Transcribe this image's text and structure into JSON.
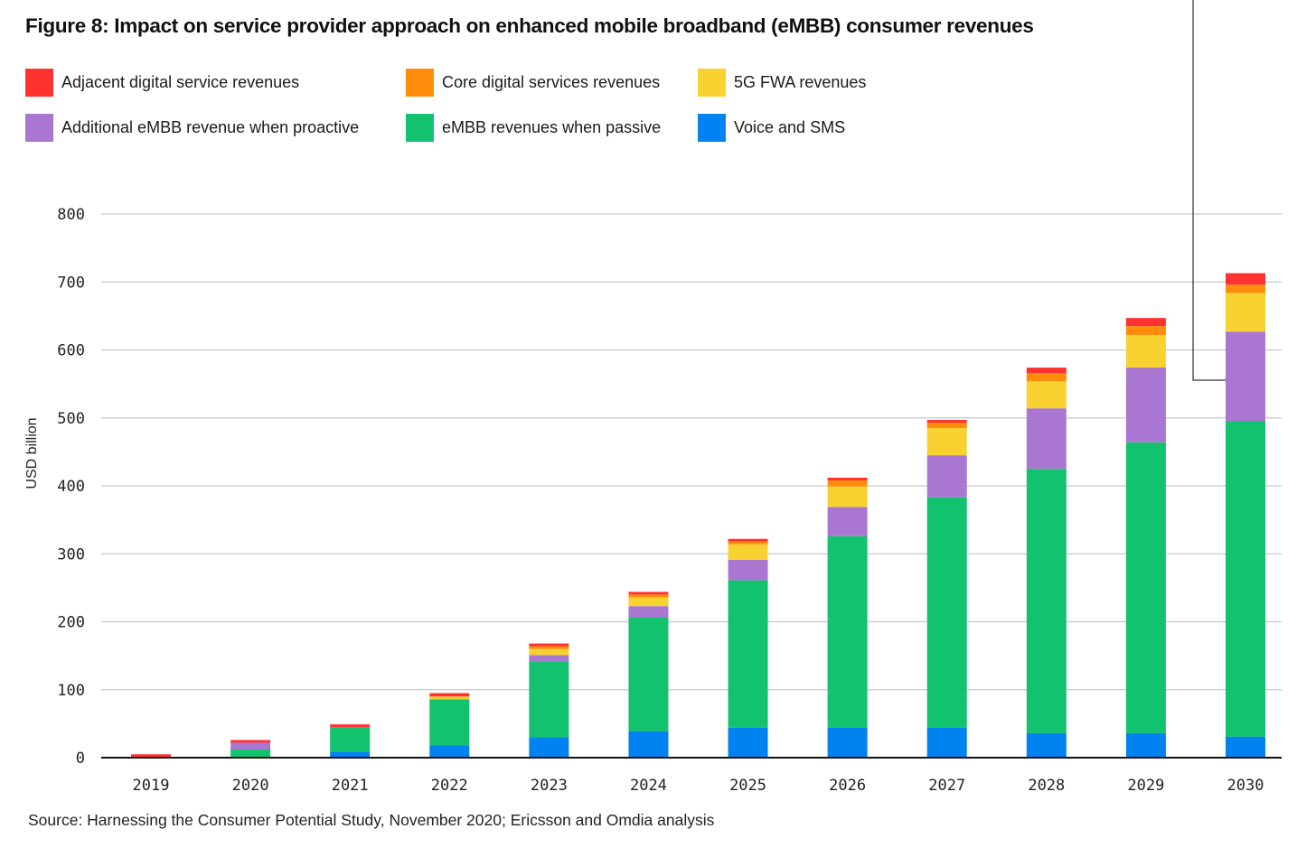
{
  "chart_data": {
    "type": "bar",
    "stacked": true,
    "title": "Figure 8: Impact on service provider approach on enhanced mobile broadband (eMBB) consumer revenues",
    "xlabel": "",
    "ylabel": "USD billion",
    "ylim": [
      0,
      800
    ],
    "yticks": [
      0,
      100,
      200,
      300,
      400,
      500,
      600,
      700,
      800
    ],
    "grid": true,
    "legend_position": "top",
    "categories": [
      "2019",
      "2020",
      "2021",
      "2022",
      "2023",
      "2024",
      "2025",
      "2026",
      "2027",
      "2028",
      "2029",
      "2030"
    ],
    "series": [
      {
        "name": "Voice and SMS",
        "color": "#0082f0",
        "values": [
          0,
          0,
          9,
          18,
          30,
          39,
          44,
          44,
          44,
          36,
          36,
          31
        ]
      },
      {
        "name": "eMBB revenues when passive",
        "color": "#12c26e",
        "values": [
          1,
          12,
          36,
          68,
          112,
          167,
          217,
          282,
          339,
          389,
          428,
          464
        ]
      },
      {
        "name": "Additional eMBB revenue when proactive",
        "color": "#a977d1",
        "values": [
          0,
          10,
          0,
          0,
          9,
          17,
          30,
          43,
          62,
          89,
          110,
          132
        ]
      },
      {
        "name": "5G FWA revenues",
        "color": "#f9d131",
        "values": [
          0,
          0,
          0,
          4,
          9,
          13,
          23,
          30,
          40,
          40,
          48,
          57
        ]
      },
      {
        "name": "Core digital services revenues",
        "color": "#ff8c0a",
        "values": [
          0,
          0,
          0,
          0,
          4,
          4,
          4,
          9,
          8,
          12,
          13,
          12
        ]
      },
      {
        "name": "Adjacent digital service revenues",
        "color": "#ff3232",
        "values": [
          4,
          4,
          4,
          5,
          4,
          4,
          4,
          4,
          4,
          8,
          12,
          17
        ]
      }
    ]
  },
  "legend": {
    "items": [
      {
        "label": "Adjacent digital service revenues",
        "color": "#ff3232"
      },
      {
        "label": "Core digital services revenues",
        "color": "#ff8c0a"
      },
      {
        "label": "5G FWA revenues",
        "color": "#f9d131"
      },
      {
        "label": "Additional eMBB revenue when proactive",
        "color": "#a977d1"
      },
      {
        "label": "eMBB revenues when passive",
        "color": "#12c26e"
      },
      {
        "label": "Voice and SMS",
        "color": "#0082f0"
      }
    ]
  },
  "source": "Source: Harnessing the Consumer Potential Study, November 2020; Ericsson and Omdia analysis"
}
